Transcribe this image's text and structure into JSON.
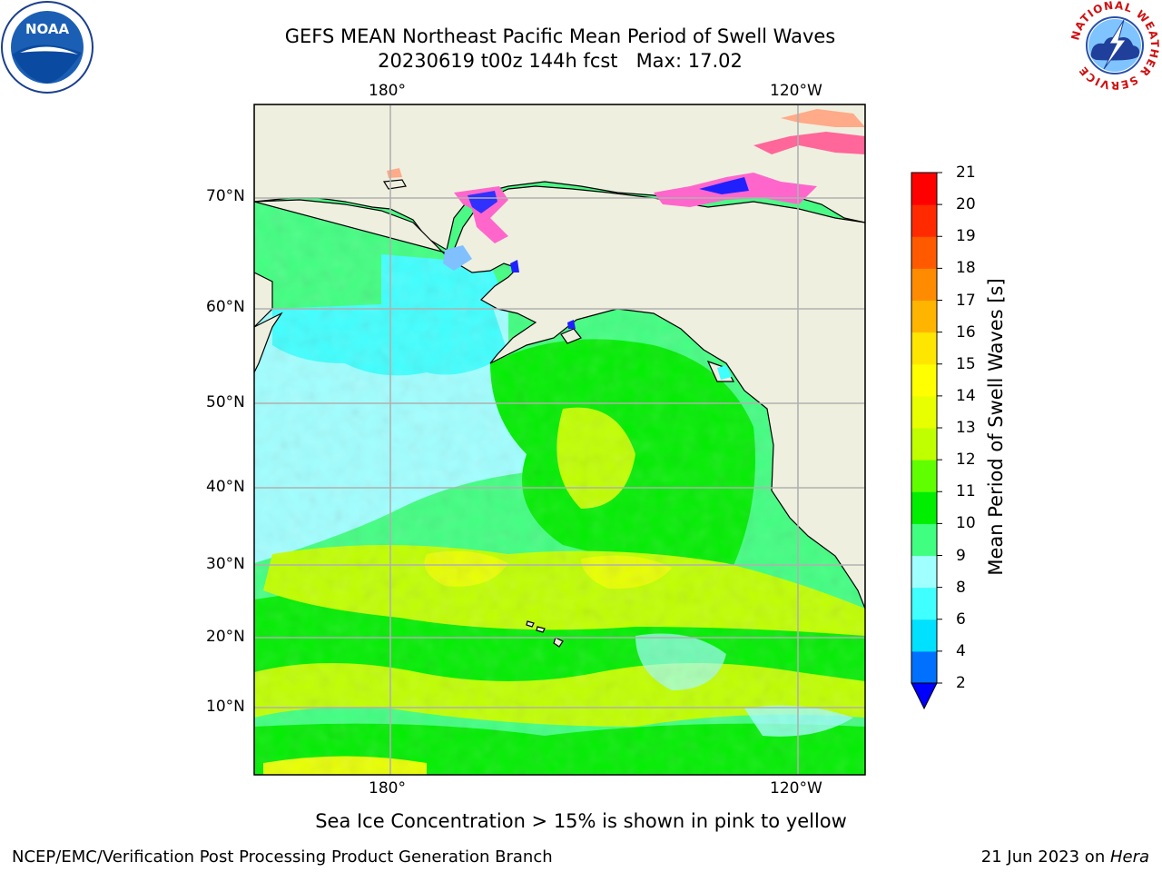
{
  "title": {
    "line1": "GEFS MEAN Northeast Pacific Mean Period of Swell Waves",
    "line2": "20230619 t00z 144h fcst   Max: 17.02"
  },
  "axes": {
    "top_lon_labels": [
      "180°",
      "120°W"
    ],
    "bottom_lon_labels": [
      "180°",
      "120°W"
    ],
    "lat_labels": [
      "70°N",
      "60°N",
      "50°N",
      "40°N",
      "30°N",
      "20°N",
      "10°N"
    ]
  },
  "colorbar": {
    "label": "Mean Period of Swell Waves [s]",
    "ticks": [
      2,
      4,
      6,
      8,
      9,
      10,
      11,
      12,
      13,
      14,
      15,
      16,
      17,
      18,
      19,
      20,
      21
    ],
    "colors": [
      "#0070ff",
      "#00e0ff",
      "#40ffff",
      "#a0ffff",
      "#40ff80",
      "#00ee00",
      "#60ff00",
      "#c0ff00",
      "#e8ff00",
      "#ffff00",
      "#ffe600",
      "#ffb400",
      "#ff8c00",
      "#ff5a00",
      "#ff2a00",
      "#ff0000"
    ],
    "under_color": "#0000ff"
  },
  "caption": "Sea Ice Concentration > 15% is shown in pink to yellow",
  "footer": {
    "left": "NCEP/EMC/Verification Post Processing Product Generation Branch",
    "date": "21 Jun 2023 on ",
    "machine": "Hera"
  },
  "logos": {
    "noaa": "NOAA",
    "nws_ring": "NATIONAL WEATHER SERVICE"
  },
  "chart_data": {
    "type": "heatmap",
    "title": "GEFS MEAN Northeast Pacific Mean Period of Swell Waves",
    "subtitle": "20230619 t00z 144h fcst   Max: 17.02",
    "variable": "Mean Period of Swell Waves [s]",
    "max": 17.02,
    "units": "s",
    "lon_ticks": [
      "180°",
      "120°W"
    ],
    "lat_ticks": [
      "70°N",
      "60°N",
      "50°N",
      "40°N",
      "30°N",
      "20°N",
      "10°N"
    ],
    "levels": [
      2,
      4,
      6,
      8,
      9,
      10,
      11,
      12,
      13,
      14,
      15,
      16,
      17,
      18,
      19,
      20,
      21
    ],
    "grid": true,
    "colorbar_placement": "right"
  }
}
